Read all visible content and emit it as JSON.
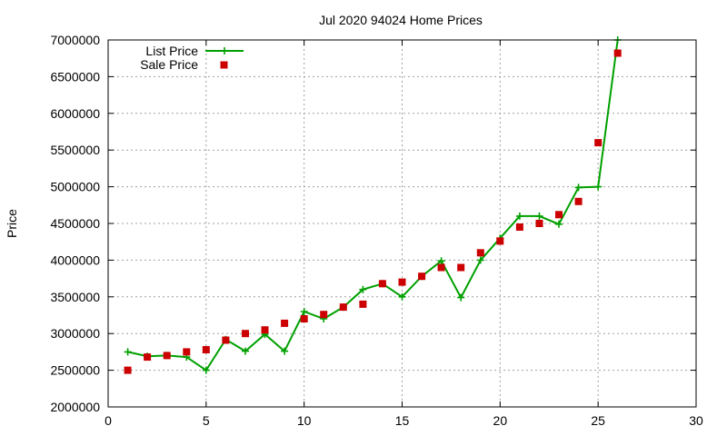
{
  "chart_data": {
    "type": "line",
    "title": "Jul 2020 94024 Home Prices",
    "xlabel": "",
    "ylabel": "Price",
    "xlim": [
      0,
      30
    ],
    "ylim": [
      2000000,
      7000000
    ],
    "x_ticks": [
      0,
      5,
      10,
      15,
      20,
      25,
      30
    ],
    "y_ticks": [
      2000000,
      2500000,
      3000000,
      3500000,
      4000000,
      4500000,
      5000000,
      5500000,
      6000000,
      6500000,
      7000000
    ],
    "grid": true,
    "legend_position": "top-left",
    "x": [
      1,
      2,
      3,
      4,
      5,
      6,
      7,
      8,
      9,
      10,
      11,
      12,
      13,
      14,
      15,
      16,
      17,
      18,
      19,
      20,
      21,
      22,
      23,
      24,
      25,
      26
    ],
    "series": [
      {
        "name": "List Price",
        "style": "line-points",
        "color": "#00a000",
        "values": [
          2750000,
          2690000,
          2700000,
          2680000,
          2500000,
          2920000,
          2760000,
          2990000,
          2760000,
          3300000,
          3200000,
          3360000,
          3600000,
          3680000,
          3500000,
          3780000,
          3990000,
          3490000,
          4000000,
          4300000,
          4600000,
          4600000,
          4490000,
          4990000,
          5000000,
          7000000
        ]
      },
      {
        "name": "Sale Price",
        "style": "points",
        "color": "#cc0000",
        "values": [
          2500000,
          2680000,
          2700000,
          2750000,
          2780000,
          2910000,
          3000000,
          3050000,
          3140000,
          3200000,
          3260000,
          3360000,
          3400000,
          3680000,
          3700000,
          3780000,
          3900000,
          3900000,
          4100000,
          4260000,
          4450000,
          4500000,
          4620000,
          4800000,
          5600000,
          6820000
        ]
      }
    ]
  }
}
